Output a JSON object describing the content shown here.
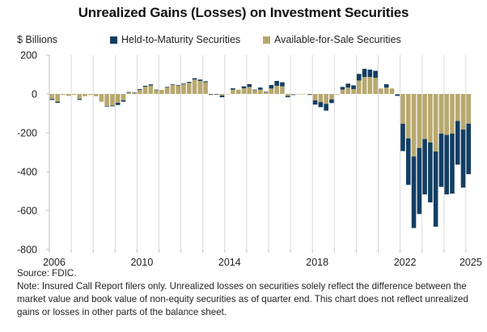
{
  "chart_data": {
    "type": "bar",
    "stacked": true,
    "title": "Unrealized Gains (Losses) on Investment Securities",
    "ylabel": "$ Billions",
    "xlabel": "",
    "ylim": [
      -800,
      200
    ],
    "yticks": [
      200,
      0,
      -200,
      -400,
      -600,
      -800
    ],
    "xtick_labels": [
      "2006",
      "2010",
      "2014",
      "2018",
      "2022",
      "2025"
    ],
    "xtick_years": [
      2006,
      2010,
      2014,
      2018,
      2022,
      2025
    ],
    "x_start_year": 2006,
    "x_end_year": 2025,
    "grid": "vertical-yearly",
    "legend_position": "top",
    "categories": [
      "2006Q1",
      "2006Q2",
      "2006Q3",
      "2006Q4",
      "2007Q1",
      "2007Q2",
      "2007Q3",
      "2007Q4",
      "2008Q1",
      "2008Q2",
      "2008Q3",
      "2008Q4",
      "2009Q1",
      "2009Q2",
      "2009Q3",
      "2009Q4",
      "2010Q1",
      "2010Q2",
      "2010Q3",
      "2010Q4",
      "2011Q1",
      "2011Q2",
      "2011Q3",
      "2011Q4",
      "2012Q1",
      "2012Q2",
      "2012Q3",
      "2012Q4",
      "2013Q1",
      "2013Q2",
      "2013Q3",
      "2013Q4",
      "2014Q1",
      "2014Q2",
      "2014Q3",
      "2014Q4",
      "2015Q1",
      "2015Q2",
      "2015Q3",
      "2015Q4",
      "2016Q1",
      "2016Q2",
      "2016Q3",
      "2016Q4",
      "2017Q1",
      "2017Q2",
      "2017Q3",
      "2017Q4",
      "2018Q1",
      "2018Q2",
      "2018Q3",
      "2018Q4",
      "2019Q1",
      "2019Q2",
      "2019Q3",
      "2019Q4",
      "2020Q1",
      "2020Q2",
      "2020Q3",
      "2020Q4",
      "2021Q1",
      "2021Q2",
      "2021Q3",
      "2021Q4",
      "2022Q1",
      "2022Q2",
      "2022Q3",
      "2022Q4",
      "2023Q1",
      "2023Q2",
      "2023Q3",
      "2023Q4",
      "2024Q1",
      "2024Q2",
      "2024Q3",
      "2024Q4",
      "2025Q1"
    ],
    "series": [
      {
        "name": "Available-for-Sale Securities",
        "color": "#b8a86e",
        "values": [
          -26,
          -40,
          -5,
          -10,
          -5,
          -26,
          -12,
          -5,
          -12,
          -40,
          -62,
          -60,
          -46,
          -32,
          8,
          6,
          21,
          37,
          43,
          21,
          21,
          35,
          46,
          43,
          49,
          57,
          74,
          67,
          60,
          -2,
          -2,
          -8,
          -2,
          22,
          22,
          29,
          36,
          19,
          22,
          8,
          28,
          42,
          39,
          -10,
          -3,
          -1,
          1,
          -2,
          -33,
          -42,
          -51,
          -28,
          -3,
          22,
          33,
          25,
          69,
          87,
          87,
          83,
          28,
          33,
          28,
          -3,
          -153,
          -229,
          -322,
          -278,
          -232,
          -250,
          -296,
          -204,
          -211,
          -204,
          -139,
          -183,
          -153
        ]
      },
      {
        "name": "Held-to-Maturity Securities",
        "color": "#123e63",
        "values": [
          -5,
          -6,
          0,
          0,
          0,
          -5,
          0,
          0,
          0,
          0,
          -3,
          -4,
          -11,
          -8,
          2,
          1,
          4,
          5,
          6,
          1,
          0,
          2,
          3,
          3,
          4,
          5,
          7,
          7,
          5,
          -3,
          -1,
          -9,
          0,
          7,
          0,
          10,
          14,
          3,
          11,
          3,
          18,
          25,
          21,
          -7,
          -2,
          0,
          0,
          -3,
          -22,
          -26,
          -35,
          -19,
          0,
          14,
          20,
          19,
          34,
          42,
          38,
          36,
          0,
          17,
          0,
          -7,
          -141,
          -239,
          -368,
          -340,
          -285,
          -308,
          -387,
          -274,
          -306,
          -309,
          -225,
          -299,
          -260
        ]
      }
    ]
  },
  "legend": {
    "htm_label": "Held-to-Maturity Securities",
    "afs_label": "Available-for-Sale Securities",
    "htm_color": "#123e63",
    "afs_color": "#b8a86e"
  },
  "header": {
    "title": "Unrealized Gains (Losses) on Investment Securities",
    "units": "$ Billions"
  },
  "footer": {
    "source": "Source: FDIC.",
    "note": "Note: Insured Call Report filers only. Unrealized losses on securities solely reflect the difference between the market value and book value of non-equity securities as of quarter end. This chart does not reflect unrealized gains or losses in other parts of the balance sheet."
  }
}
